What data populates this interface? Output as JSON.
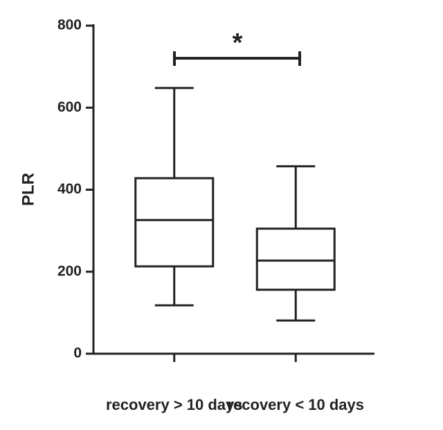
{
  "chart_data": {
    "type": "box",
    "ylabel": "PLR",
    "categories": [
      "recovery > 10 days",
      "recovery < 10 days"
    ],
    "boxes": [
      {
        "min": 118,
        "q1": 213,
        "median": 326,
        "q3": 428,
        "max": 648
      },
      {
        "min": 81,
        "q1": 156,
        "median": 227,
        "q3": 305,
        "max": 457
      }
    ],
    "ylim": [
      0,
      800
    ],
    "yticks": [
      0,
      200,
      400,
      600,
      800
    ],
    "annotation": "*",
    "color": "#222222"
  }
}
